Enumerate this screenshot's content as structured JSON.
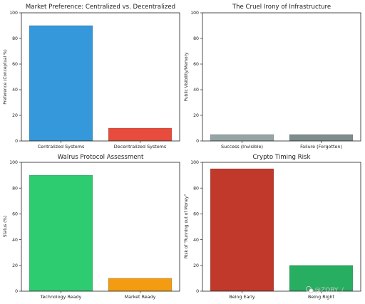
{
  "chart_data": [
    {
      "type": "bar",
      "title": "Market Preference: Centralized vs. Decentralized",
      "ylabel": "Preference (Conceptual %)",
      "xlabel": "",
      "categories": [
        "Centralized Systems",
        "Decentralized Systems"
      ],
      "values": [
        90,
        10
      ],
      "colors": [
        "#3498db",
        "#e74c3c"
      ],
      "ylim": [
        0,
        100
      ],
      "yticks": [
        0,
        20,
        40,
        60,
        80,
        100
      ],
      "grid": false
    },
    {
      "type": "bar",
      "title": "The Cruel Irony of Infrastructure",
      "ylabel": "Public Visibility/Memory",
      "xlabel": "",
      "categories": [
        "Success (Invisible)",
        "Failure (Forgotten)"
      ],
      "values": [
        5,
        5
      ],
      "colors": [
        "#95a5a6",
        "#7f8c8d"
      ],
      "ylim": [
        0,
        100
      ],
      "yticks": [
        0,
        20,
        40,
        60,
        80,
        100
      ],
      "grid": false
    },
    {
      "type": "bar",
      "title": "Walrus Protocol Assessment",
      "ylabel": "Status (%)",
      "xlabel": "",
      "categories": [
        "Technology Ready",
        "Market Ready"
      ],
      "values": [
        90,
        10
      ],
      "colors": [
        "#2ecc71",
        "#f39c12"
      ],
      "ylim": [
        0,
        100
      ],
      "yticks": [
        0,
        20,
        40,
        60,
        80,
        100
      ],
      "grid": false
    },
    {
      "type": "bar",
      "title": "Crypto Timing Risk",
      "ylabel": "Risk of \"Running out of Money\"",
      "xlabel": "",
      "categories": [
        "Being Early",
        "Being Right"
      ],
      "values": [
        95,
        20
      ],
      "colors": [
        "#c0392b",
        "#27ae60"
      ],
      "ylim": [
        0,
        100
      ],
      "yticks": [
        0,
        20,
        40,
        60,
        80,
        100
      ],
      "grid": false
    }
  ],
  "watermark": {
    "text": "@ZORY_/",
    "icon": "wechat-style-icon"
  }
}
